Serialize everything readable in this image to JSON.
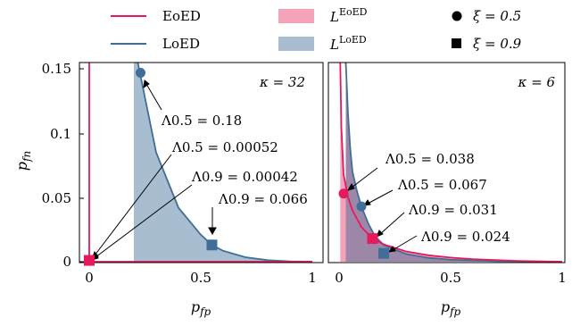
{
  "colors": {
    "eoed": "#e8195a",
    "loed": "#3f6e99",
    "eoed_fill": "#f5a3b8",
    "loed_fill": "#a9bdd0",
    "overlap_fill": "#9d87a8"
  },
  "legend": {
    "eoed_line": "EoED",
    "loed_line": "LoED",
    "eoed_region": "L",
    "eoed_region_sup": "EoED",
    "loed_region": "L",
    "loed_region_sup": "LoED",
    "xi_circle": "ξ = 0.5",
    "xi_square": "ξ = 0.9"
  },
  "chart_data": [
    {
      "type": "line",
      "panel_title": "κ = 32",
      "xlabel": "p_fp",
      "ylabel": "p_fn",
      "xlim": [
        0,
        1
      ],
      "ylim": [
        0,
        0.155
      ],
      "xticks": [
        "0",
        "0.5",
        "1"
      ],
      "yticks": [
        "0",
        "0.05",
        "0.1",
        "0.15"
      ],
      "series": [
        {
          "name": "EoED",
          "x": [
            0.0,
            0.0,
            1.0
          ],
          "y": [
            0.155,
            0.0,
            0.0
          ]
        },
        {
          "name": "LoED",
          "x": [
            0.2,
            0.3,
            0.4,
            0.5,
            0.55,
            0.6,
            0.7,
            0.8,
            0.9,
            1.0
          ],
          "y": [
            0.17,
            0.085,
            0.042,
            0.021,
            0.013,
            0.0085,
            0.0035,
            0.0012,
            0.0003,
            0.0
          ]
        }
      ],
      "points": [
        {
          "series": "LoED",
          "marker": "circle",
          "xi": 0.5,
          "x": 0.23,
          "y": 0.147,
          "label": "Λ0.5 = 0.18"
        },
        {
          "series": "EoED",
          "marker": "circle",
          "xi": 0.5,
          "x": 0.0,
          "y": 0.001,
          "label": "Λ0.5 = 0.00052"
        },
        {
          "series": "EoED",
          "marker": "square",
          "xi": 0.9,
          "x": 0.0,
          "y": 0.001,
          "label": "Λ0.9 = 0.00042"
        },
        {
          "series": "LoED",
          "marker": "square",
          "xi": 0.9,
          "x": 0.55,
          "y": 0.013,
          "label": "Λ0.9 = 0.066"
        }
      ]
    },
    {
      "type": "line",
      "panel_title": "κ = 6",
      "xlabel": "p_fp",
      "ylabel": "",
      "xlim": [
        0,
        1
      ],
      "ylim": [
        0,
        0.155
      ],
      "xticks": [
        "0",
        "0.5",
        "1"
      ],
      "yticks": [],
      "series": [
        {
          "name": "EoED",
          "x": [
            0.005,
            0.01,
            0.02,
            0.04,
            0.06,
            0.1,
            0.15,
            0.2,
            0.3,
            0.4,
            0.5,
            0.6,
            0.8,
            1.0
          ],
          "y": [
            0.155,
            0.105,
            0.068,
            0.05,
            0.04,
            0.027,
            0.018,
            0.0135,
            0.008,
            0.005,
            0.0032,
            0.002,
            0.0006,
            0.0
          ]
        },
        {
          "name": "LoED",
          "x": [
            0.03,
            0.04,
            0.05,
            0.06,
            0.08,
            0.1,
            0.13,
            0.16,
            0.2,
            0.3,
            0.4,
            0.5,
            0.7,
            1.0
          ],
          "y": [
            0.155,
            0.115,
            0.088,
            0.07,
            0.055,
            0.043,
            0.03,
            0.02,
            0.013,
            0.006,
            0.003,
            0.0015,
            0.0004,
            0.0
          ]
        }
      ],
      "points": [
        {
          "series": "EoED",
          "marker": "circle",
          "xi": 0.5,
          "x": 0.02,
          "y": 0.053,
          "label": "Λ0.5 = 0.038"
        },
        {
          "series": "LoED",
          "marker": "circle",
          "xi": 0.5,
          "x": 0.1,
          "y": 0.043,
          "label": "Λ0.5 = 0.067"
        },
        {
          "series": "EoED",
          "marker": "square",
          "xi": 0.9,
          "x": 0.15,
          "y": 0.018,
          "label": "Λ0.9 = 0.031"
        },
        {
          "series": "LoED",
          "marker": "square",
          "xi": 0.9,
          "x": 0.2,
          "y": 0.0065,
          "label": "Λ0.9 = 0.024"
        }
      ]
    }
  ]
}
